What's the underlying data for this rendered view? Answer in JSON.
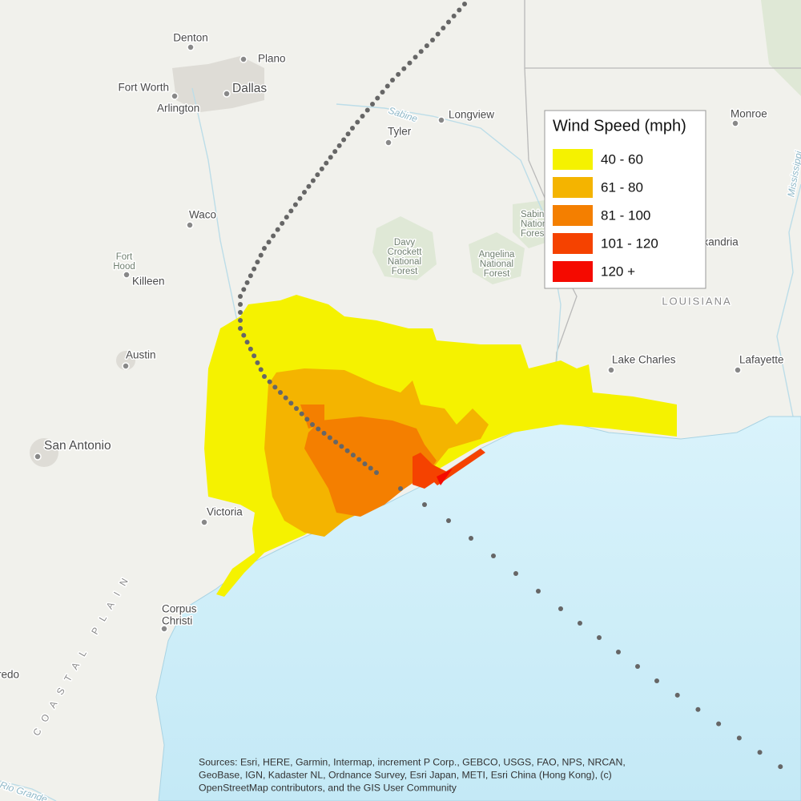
{
  "map": {
    "places": [
      {
        "lines": [
          "Denton"
        ]
      },
      {
        "lines": [
          "Plano"
        ]
      },
      {
        "lines": [
          "Fort Worth"
        ]
      },
      {
        "lines": [
          "Dallas"
        ]
      },
      {
        "lines": [
          "Arlington"
        ]
      },
      {
        "lines": [
          "Longview"
        ]
      },
      {
        "lines": [
          "Tyler"
        ]
      },
      {
        "lines": [
          "Monroe"
        ]
      },
      {
        "lines": [
          "Waco"
        ]
      },
      {
        "lines": [
          "Fort",
          "Hood"
        ]
      },
      {
        "lines": [
          "Killeen"
        ]
      },
      {
        "lines": [
          "Davy",
          "Crockett",
          "National",
          "Forest"
        ]
      },
      {
        "lines": [
          "Angelina",
          "National",
          "Forest"
        ]
      },
      {
        "lines": [
          "Sabine",
          "National",
          "Forest"
        ]
      },
      {
        "lines": [
          "Alexandria"
        ]
      },
      {
        "lines": [
          "LOUISIANA"
        ]
      },
      {
        "lines": [
          "Lake Charles"
        ]
      },
      {
        "lines": [
          "Lafayette"
        ]
      },
      {
        "lines": [
          "Austin"
        ]
      },
      {
        "lines": [
          "San Antonio"
        ]
      },
      {
        "lines": [
          "Victoria"
        ]
      },
      {
        "lines": [
          "Corpus",
          "Christi"
        ]
      },
      {
        "lines": [
          "Laredo"
        ]
      },
      {
        "lines": [
          "COASTAL PLAIN"
        ]
      },
      {
        "lines": [
          "Sabine"
        ]
      },
      {
        "lines": [
          "Rio Grande"
        ]
      },
      {
        "lines": [
          "Mississippi"
        ]
      }
    ],
    "legend": {
      "title": "Wind Speed (mph)",
      "items": [
        {
          "label": "40 - 60",
          "color": "#f5f200"
        },
        {
          "label": "61 - 80",
          "color": "#f4b400"
        },
        {
          "label": "81 - 100",
          "color": "#f47f00"
        },
        {
          "label": "101 - 120",
          "color": "#f54200"
        },
        {
          "label": "120 +",
          "color": "#f50a00"
        }
      ]
    },
    "attribution": [
      "Sources: Esri, HERE, Garmin, Intermap, increment P Corp., GEBCO, USGS, FAO, NPS, NRCAN,",
      "GeoBase, IGN, Kadaster NL, Ordnance Survey, Esri Japan, METI, Esri China (Hong Kong), (c)",
      "OpenStreetMap contributors, and the GIS User Community"
    ]
  }
}
